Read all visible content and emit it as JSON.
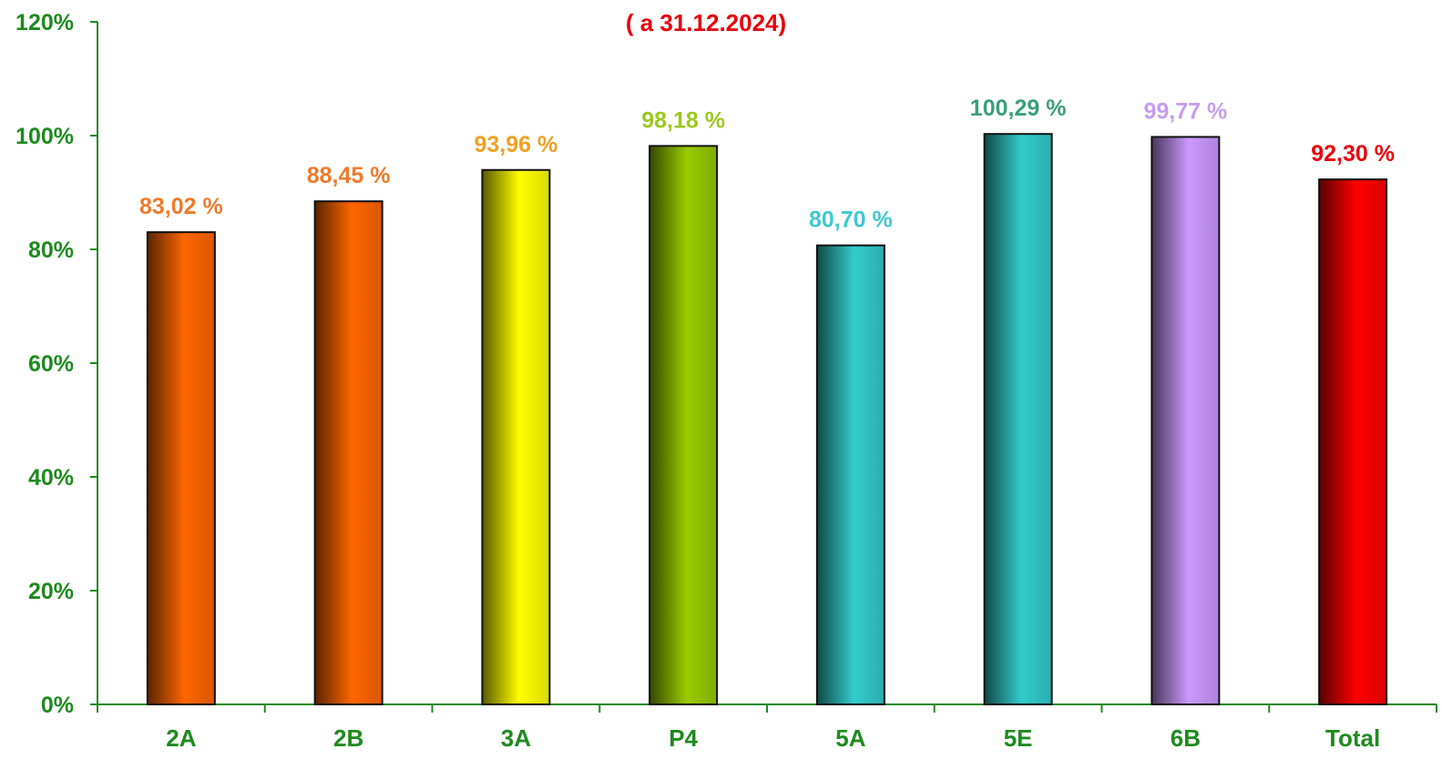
{
  "chart_data": {
    "type": "bar",
    "title": "",
    "subtitle": "( a 31.12.2024)",
    "xlabel": "",
    "ylabel": "",
    "ylim": [
      0,
      120
    ],
    "yticks": [
      0,
      20,
      40,
      60,
      80,
      100,
      120
    ],
    "ytick_labels": [
      "0%",
      "20%",
      "40%",
      "60%",
      "80%",
      "100%",
      "120%"
    ],
    "grid": false,
    "legend": "none",
    "categories": [
      "2A",
      "2B",
      "3A",
      "P4",
      "5A",
      "5E",
      "6B",
      "Total"
    ],
    "values": [
      83.02,
      88.45,
      93.96,
      98.18,
      80.7,
      100.29,
      99.77,
      92.3
    ],
    "data_labels": [
      "83,02 %",
      "88,45 %",
      "93,96 %",
      "98,18 %",
      "80,70 %",
      "100,29 %",
      "99,77 %",
      "92,30 %"
    ],
    "colors": [
      "#ff6600",
      "#ff6600",
      "#ffff00",
      "#99cc00",
      "#33cccc",
      "#33cccc",
      "#cc99ff",
      "#ff0000"
    ],
    "label_colors": [
      "#f07a2a",
      "#f07a2a",
      "#f0a020",
      "#9dc81e",
      "#3fc8cf",
      "#3a9e7c",
      "#c79cf0",
      "#e8000b"
    ]
  }
}
